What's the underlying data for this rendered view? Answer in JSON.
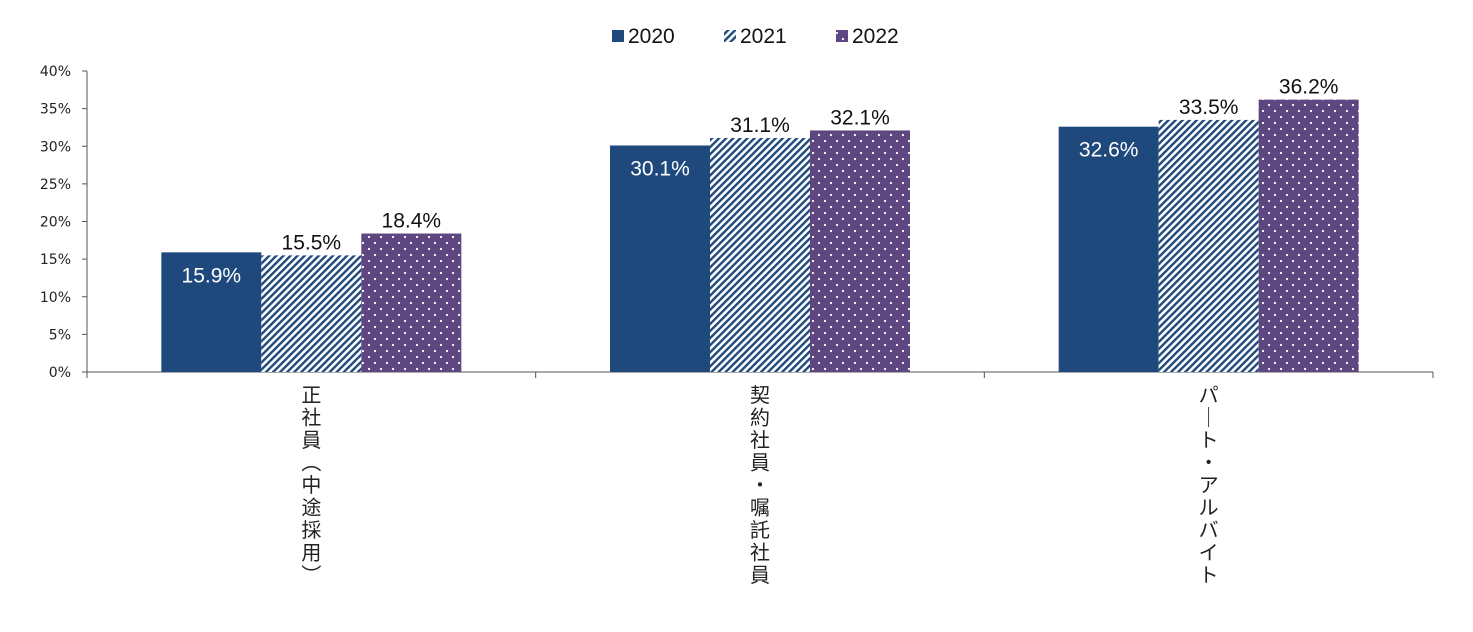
{
  "chart_data": {
    "type": "bar",
    "categories": [
      "正社員（中途採用）",
      "契約社員・嘱託社員",
      "パート・アルバイト"
    ],
    "series": [
      {
        "name": "2020",
        "values": [
          15.9,
          30.1,
          32.6
        ],
        "color": "#1f497d",
        "pattern": "solid"
      },
      {
        "name": "2021",
        "values": [
          15.5,
          31.1,
          33.5
        ],
        "color": "#1f497d",
        "pattern": "diagonal-hatch"
      },
      {
        "name": "2022",
        "values": [
          18.4,
          32.1,
          36.2
        ],
        "color": "#5e4780",
        "pattern": "dots"
      }
    ],
    "data_labels": [
      [
        "15.9%",
        "30.1%",
        "32.6%"
      ],
      [
        "15.5%",
        "31.1%",
        "33.5%"
      ],
      [
        "18.4%",
        "32.1%",
        "36.2%"
      ]
    ],
    "yticks": [
      "0%",
      "5%",
      "10%",
      "15%",
      "20%",
      "25%",
      "30%",
      "35%",
      "40%"
    ],
    "ylim": [
      0,
      40
    ],
    "ystep": 5,
    "legend_position": "top-center",
    "grid": false,
    "title": "",
    "xlabel": "",
    "ylabel": ""
  }
}
